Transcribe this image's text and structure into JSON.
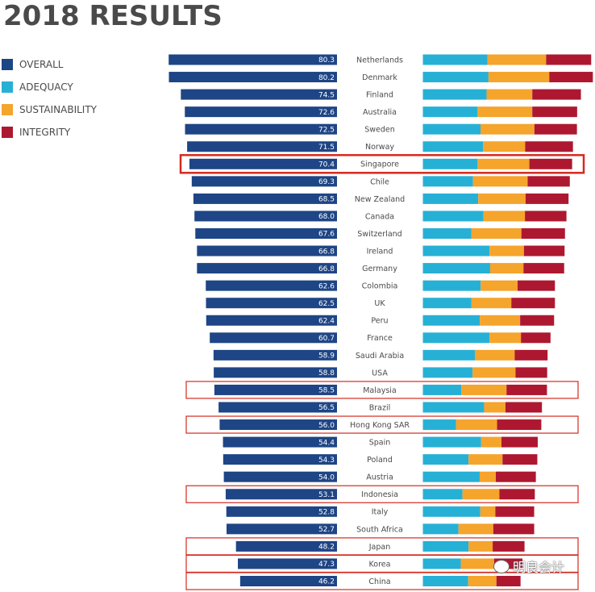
{
  "chart_data": {
    "type": "bar",
    "title": "2018 RESULTS",
    "legend": [
      {
        "name": "OVERALL",
        "color": "#1e4585"
      },
      {
        "name": "ADEQUACY",
        "color": "#27b0d5"
      },
      {
        "name": "SUSTAINABILITY",
        "color": "#f5a42c"
      },
      {
        "name": "INTEGRITY",
        "color": "#ad1830"
      }
    ],
    "legend_position": "top-left",
    "categories": [
      "Netherlands",
      "Denmark",
      "Finland",
      "Australia",
      "Sweden",
      "Norway",
      "Singapore",
      "Chile",
      "New Zealand",
      "Canada",
      "Switzerland",
      "Ireland",
      "Germany",
      "Colombia",
      "UK",
      "Peru",
      "France",
      "Saudi Arabia",
      "USA",
      "Malaysia",
      "Brazil",
      "Hong Kong SAR",
      "Spain",
      "Poland",
      "Austria",
      "Indonesia",
      "Italy",
      "South Africa",
      "Japan",
      "Korea",
      "China"
    ],
    "overall": [
      80.3,
      80.2,
      74.5,
      72.6,
      72.5,
      71.5,
      70.4,
      69.3,
      68.5,
      68.0,
      67.6,
      66.8,
      66.8,
      62.6,
      62.5,
      62.4,
      60.7,
      58.9,
      58.8,
      58.5,
      56.5,
      56.0,
      54.4,
      54.3,
      54.0,
      53.1,
      52.8,
      52.7,
      48.2,
      47.3,
      46.2
    ],
    "overall_labels": [
      "80.3",
      "80.2",
      "74.5",
      "72.6",
      "72.5",
      "71.5",
      "70.4",
      "69.3",
      "68.5",
      "68.0",
      "67.6",
      "66.8",
      "66.8",
      "62.6",
      "62.5",
      "62.4",
      "60.7",
      "58.9",
      "58.8",
      "58.5",
      "56.5",
      "56.0",
      "54.4",
      "54.3",
      "54.0",
      "53.1",
      "52.8",
      "52.7",
      "48.2",
      "47.3",
      "46.2"
    ],
    "stacked_series": [
      {
        "name": "ADEQUACY",
        "color": "#27b0d5",
        "values": [
          30.8,
          31.3,
          30.4,
          26.1,
          27.5,
          28.7,
          26.1,
          23.9,
          26.4,
          28.9,
          23.2,
          31.8,
          32.1,
          27.6,
          23.2,
          27.2,
          31.8,
          24.8,
          23.7,
          18.3,
          29.2,
          15.8,
          27.8,
          21.8,
          27.1,
          18.9,
          27.4,
          17.0,
          21.8,
          18.1,
          21.6
        ]
      },
      {
        "name": "SUSTAINABILITY",
        "color": "#f5a42c",
        "values": [
          28.0,
          29.0,
          21.8,
          26.1,
          25.7,
          20.1,
          24.7,
          26.1,
          22.6,
          19.8,
          23.8,
          16.4,
          15.9,
          17.6,
          19.0,
          19.2,
          15.0,
          19.0,
          20.5,
          21.6,
          10.2,
          19.6,
          9.7,
          16.2,
          7.7,
          17.6,
          7.2,
          16.6,
          11.5,
          15.9,
          13.5
        ]
      },
      {
        "name": "INTEGRITY",
        "color": "#ad1830",
        "values": [
          21.5,
          20.8,
          23.2,
          21.4,
          20.3,
          22.8,
          20.4,
          20.1,
          20.5,
          19.8,
          20.8,
          19.4,
          19.4,
          17.8,
          20.8,
          16.2,
          14.1,
          15.7,
          15.1,
          19.3,
          17.4,
          21.1,
          17.3,
          16.6,
          19.1,
          16.9,
          18.5,
          19.5,
          15.2,
          13.5,
          11.5
        ]
      }
    ],
    "highlighted": [
      "Singapore",
      "Malaysia",
      "Hong Kong SAR",
      "Indonesia",
      "Japan",
      "Korea",
      "China"
    ],
    "xlabel": "",
    "ylabel": "",
    "grid": false
  },
  "header": {
    "title": "2018 RESULTS"
  },
  "legend": {
    "items": [
      {
        "label": "OVERALL",
        "color": "#1e4585"
      },
      {
        "label": "ADEQUACY",
        "color": "#27b0d5"
      },
      {
        "label": "SUSTAINABILITY",
        "color": "#f5a42c"
      },
      {
        "label": "INTEGRITY",
        "color": "#ad1830"
      }
    ]
  },
  "colors": {
    "highlight_box": "#d42a1f",
    "text": "#4a4a4a"
  },
  "watermark": {
    "text": "明良会计",
    "icon": "wechat-icon"
  }
}
